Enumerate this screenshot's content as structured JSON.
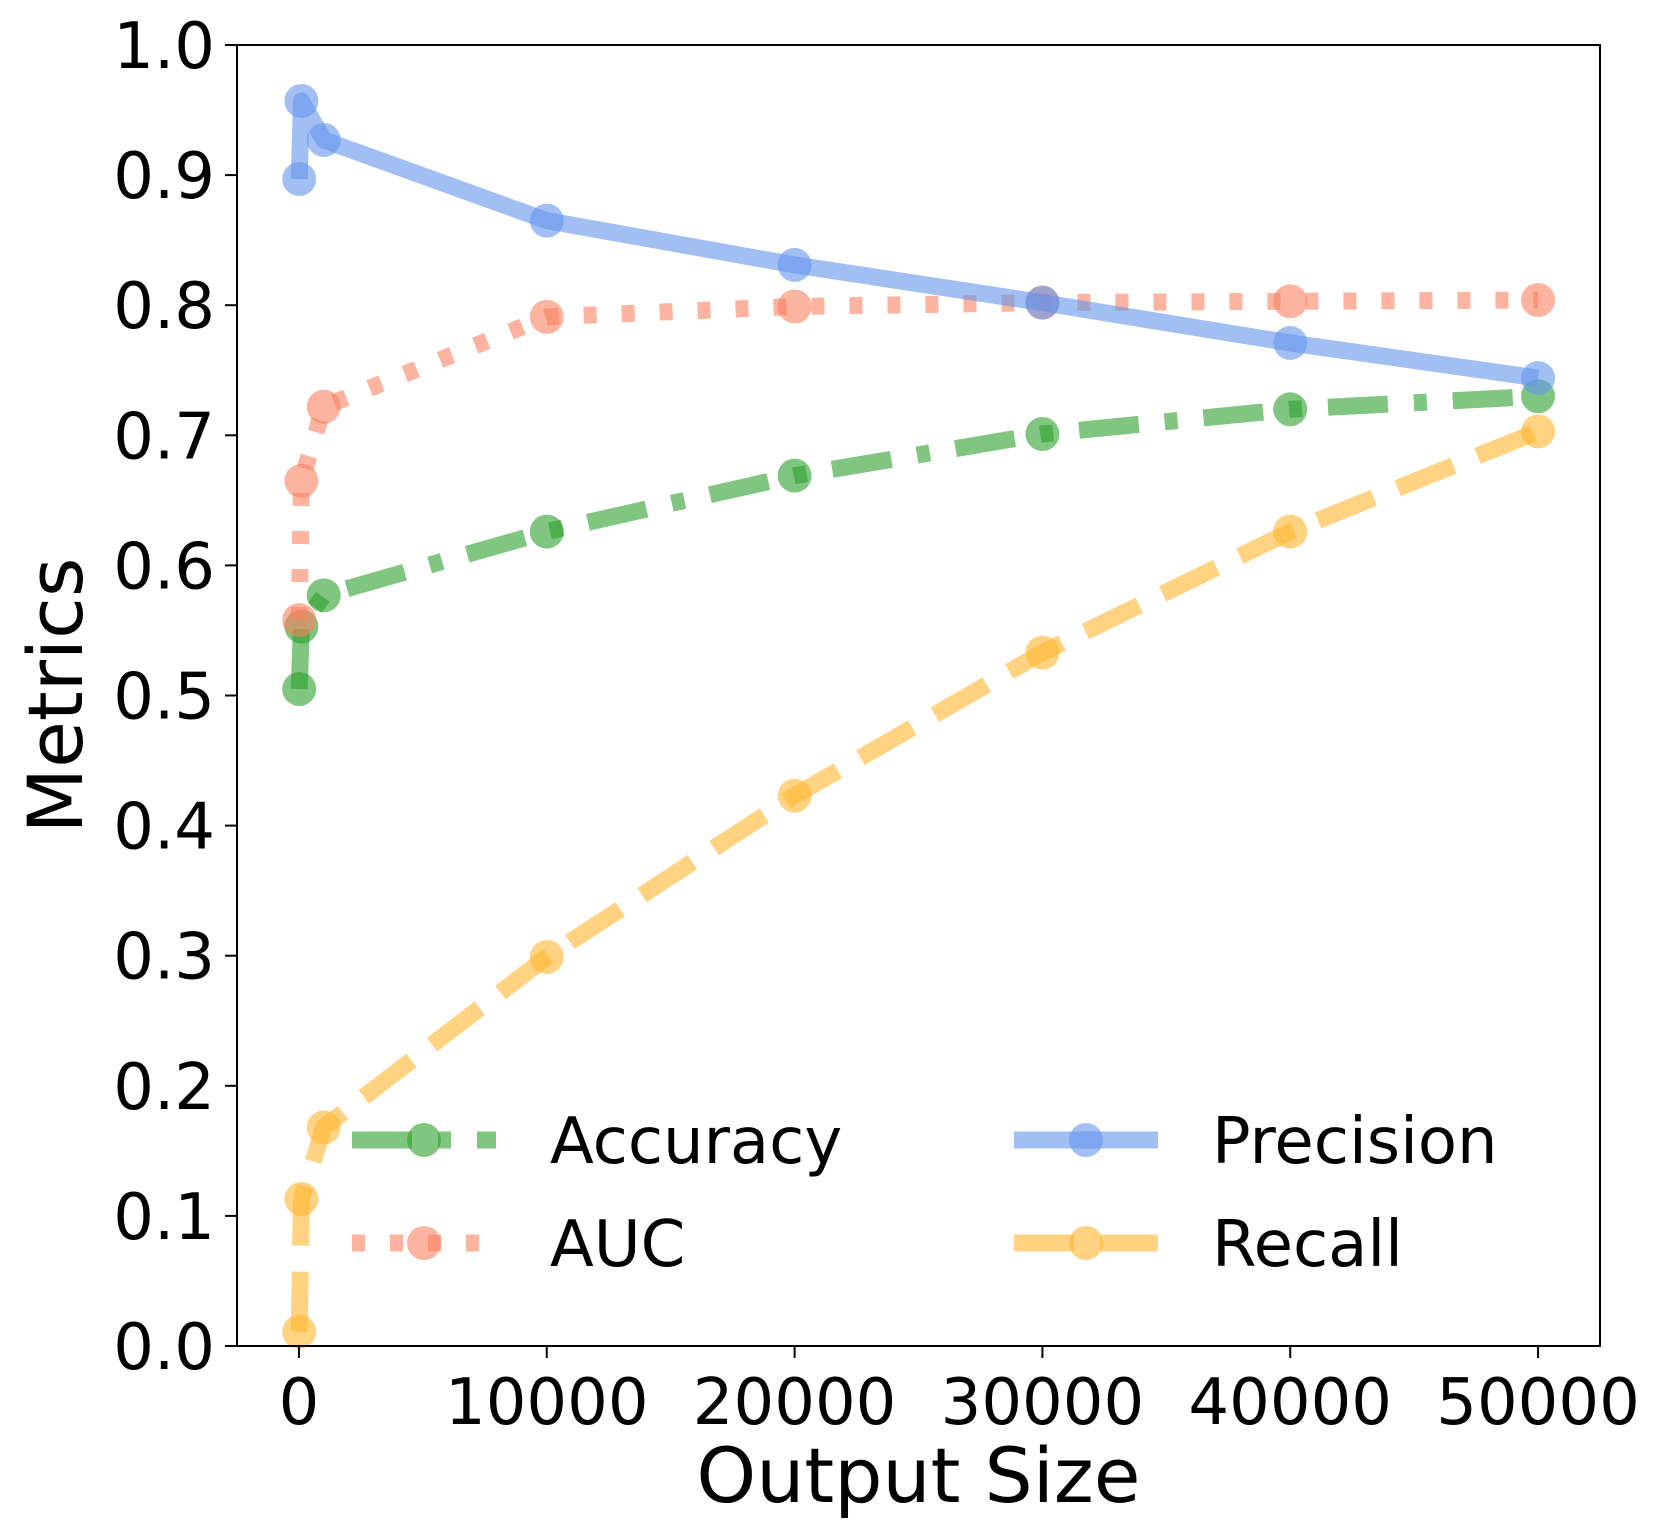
{
  "chart_data": {
    "type": "line",
    "title": "",
    "xlabel": "Output Size",
    "ylabel": "Metrics",
    "xlim": [
      -2500,
      52500
    ],
    "ylim": [
      0.0,
      1.0
    ],
    "xticks": [
      0,
      10000,
      20000,
      30000,
      40000,
      50000
    ],
    "xtick_labels": [
      "0",
      "10000",
      "20000",
      "30000",
      "40000",
      "50000"
    ],
    "yticks": [
      0.0,
      0.1,
      0.2,
      0.3,
      0.4,
      0.5,
      0.6,
      0.7,
      0.8,
      0.9,
      1.0
    ],
    "ytick_labels": [
      "0.0",
      "0.1",
      "0.2",
      "0.3",
      "0.4",
      "0.5",
      "0.6",
      "0.7",
      "0.8",
      "0.9",
      "1.0"
    ],
    "grid": false,
    "legend_position": "lower-center",
    "x": [
      10,
      100,
      1000,
      10000,
      20000,
      30000,
      40000,
      50000
    ],
    "series": [
      {
        "name": "Accuracy",
        "color": "#2ca02c",
        "style": "dashdot",
        "values": [
          0.505,
          0.553,
          0.577,
          0.626,
          0.669,
          0.701,
          0.72,
          0.73
        ]
      },
      {
        "name": "AUC",
        "color": "#fa8060",
        "style": "dotted",
        "values": [
          0.558,
          0.665,
          0.722,
          0.791,
          0.799,
          0.802,
          0.803,
          0.804
        ]
      },
      {
        "name": "Precision",
        "color": "#6495ed",
        "style": "solid",
        "values": [
          0.897,
          0.957,
          0.927,
          0.865,
          0.831,
          0.802,
          0.771,
          0.744
        ]
      },
      {
        "name": "Recall",
        "color": "#ffb52e",
        "style": "dashed",
        "values": [
          0.011,
          0.113,
          0.168,
          0.299,
          0.423,
          0.533,
          0.626,
          0.703
        ]
      }
    ]
  }
}
